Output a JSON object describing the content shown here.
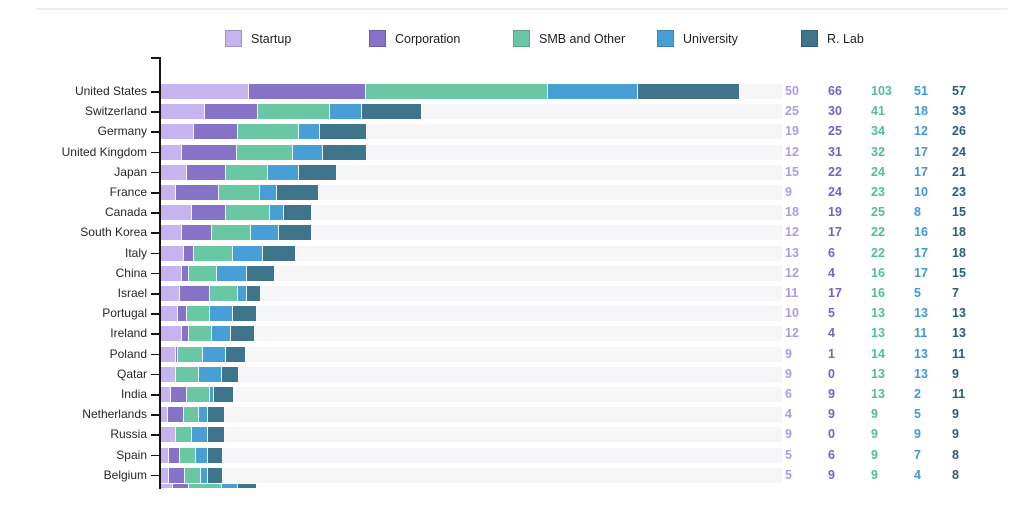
{
  "chart_data": {
    "type": "bar",
    "stacked": true,
    "orientation": "horizontal",
    "title": "",
    "xlabel": "",
    "ylabel": "",
    "legend_position": "top",
    "grid": false,
    "value_labels_position": "right-columns",
    "categories": [
      "United States",
      "Switzerland",
      "Germany",
      "United Kingdom",
      "Japan",
      "France",
      "Canada",
      "South Korea",
      "Italy",
      "China",
      "Israel",
      "Portugal",
      "Ireland",
      "Poland",
      "Qatar",
      "India",
      "Netherlands",
      "Russia",
      "Spain",
      "Belgium"
    ],
    "series": [
      {
        "name": "Startup",
        "color": "#c6b3f0",
        "label_color": "#a99ce9",
        "values": [
          50,
          25,
          19,
          12,
          15,
          9,
          18,
          12,
          13,
          12,
          11,
          10,
          12,
          9,
          9,
          6,
          4,
          9,
          5,
          5
        ]
      },
      {
        "name": "Corporation",
        "color": "#8673c8",
        "label_color": "#7463c3",
        "values": [
          66,
          30,
          25,
          31,
          22,
          24,
          19,
          17,
          6,
          4,
          17,
          5,
          4,
          1,
          0,
          9,
          9,
          0,
          6,
          9
        ]
      },
      {
        "name": "SMB and Other",
        "color": "#69c8a3",
        "label_color": "#4ec096",
        "values": [
          103,
          41,
          34,
          32,
          24,
          23,
          25,
          22,
          22,
          16,
          16,
          13,
          13,
          14,
          13,
          13,
          9,
          9,
          9,
          9
        ]
      },
      {
        "name": "University",
        "color": "#489fd5",
        "label_color": "#3d9ad3",
        "values": [
          51,
          18,
          12,
          17,
          17,
          10,
          8,
          16,
          17,
          17,
          5,
          13,
          11,
          13,
          13,
          2,
          5,
          9,
          7,
          4
        ]
      },
      {
        "name": "R. Lab",
        "color": "#3e758a",
        "label_color": "#2b5f74",
        "values": [
          57,
          33,
          26,
          24,
          21,
          23,
          15,
          18,
          18,
          15,
          7,
          13,
          13,
          11,
          9,
          11,
          9,
          9,
          8,
          8
        ]
      }
    ],
    "clipped_partial_bottom_row_units": [
      7,
      9,
      19,
      9,
      10
    ],
    "track_color": "#f6f6f9",
    "axis_color": "#151515"
  }
}
